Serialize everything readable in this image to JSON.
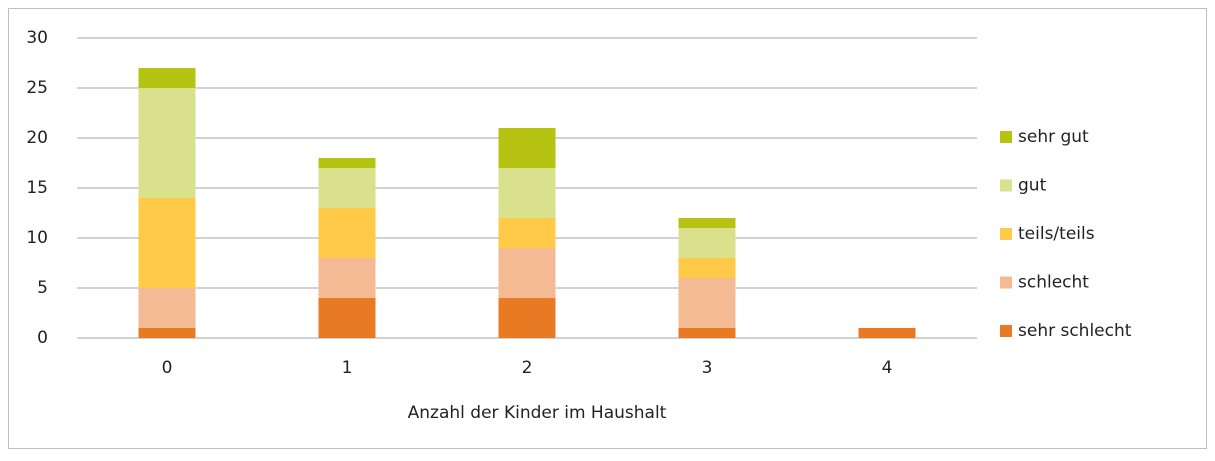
{
  "chart_data": {
    "type": "stacked_bar",
    "x_label": "Anzahl der Kinder im Haushalt",
    "categories": [
      "0",
      "1",
      "2",
      "3",
      "4"
    ],
    "series": [
      {
        "name": "sehr schlecht",
        "color": "#e87a24",
        "values": [
          1,
          4,
          4,
          1,
          1
        ]
      },
      {
        "name": "schlecht",
        "color": "#f4ba93",
        "values": [
          4,
          4,
          5,
          5,
          0
        ]
      },
      {
        "name": "teils/teils",
        "color": "#ffca48",
        "values": [
          9,
          5,
          3,
          2,
          0
        ]
      },
      {
        "name": "gut",
        "color": "#d9e18c",
        "values": [
          11,
          4,
          5,
          3,
          0
        ]
      },
      {
        "name": "sehr gut",
        "color": "#b7c313",
        "values": [
          2,
          1,
          4,
          1,
          0
        ]
      }
    ],
    "ylim": [
      0,
      30
    ],
    "yticks": [
      0,
      5,
      10,
      15,
      20,
      25,
      30
    ],
    "grid": true,
    "legend": "right"
  }
}
